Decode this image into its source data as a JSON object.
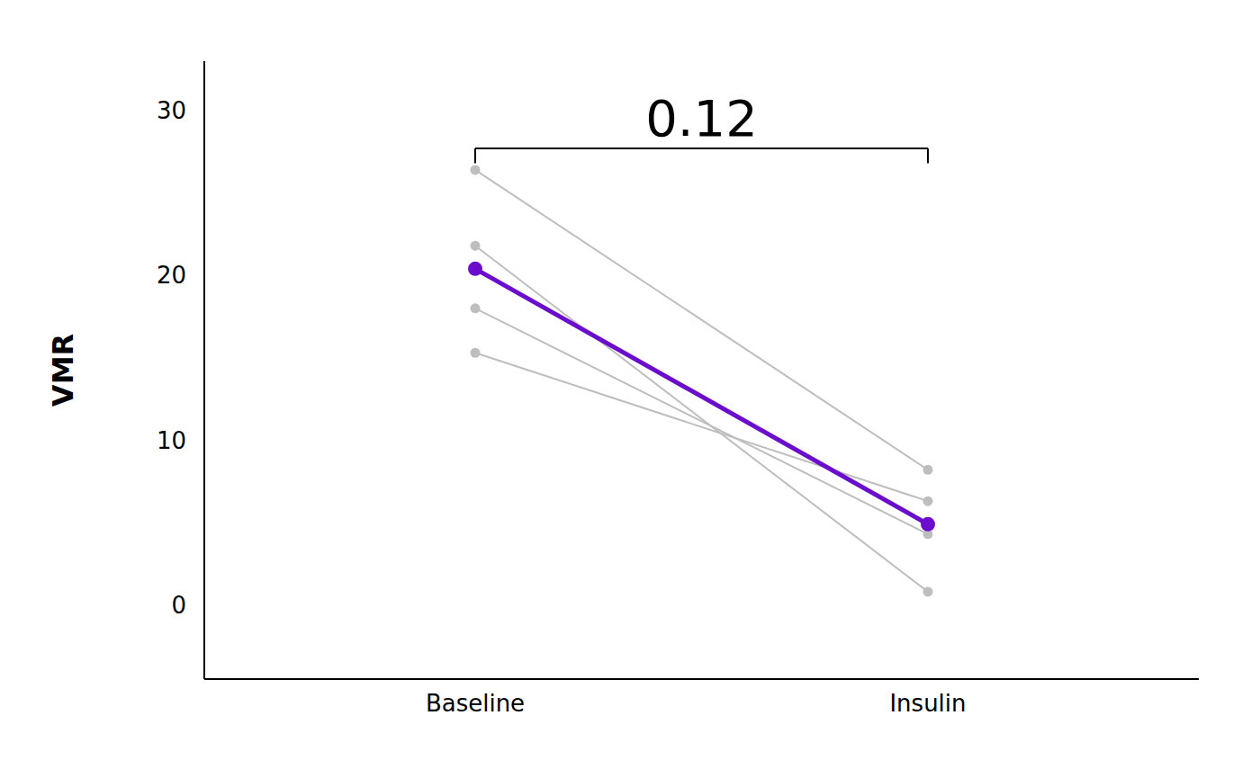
{
  "chart_data": {
    "type": "line",
    "categories": [
      "Baseline",
      "Insulin"
    ],
    "y_label": "VMR",
    "ylim": [
      -4.5,
      33
    ],
    "yticks": [
      0,
      10,
      20,
      30
    ],
    "series": [
      {
        "color": "#bebebe",
        "marker": "circle",
        "values": [
          26.4,
          8.2
        ]
      },
      {
        "color": "#bebebe",
        "marker": "circle",
        "values": [
          21.8,
          0.8
        ]
      },
      {
        "color": "#bebebe",
        "marker": "circle",
        "values": [
          18.0,
          4.3
        ]
      },
      {
        "color": "#bebebe",
        "marker": "circle",
        "values": [
          15.3,
          6.3
        ]
      },
      {
        "color": "#6a0dcc",
        "marker": "circle",
        "values": [
          20.4,
          4.9
        ]
      }
    ],
    "annotations": [
      {
        "text": "0.12",
        "from": "Baseline",
        "to": "Insulin",
        "y": 27.7,
        "y_end": 26.8
      }
    ]
  }
}
